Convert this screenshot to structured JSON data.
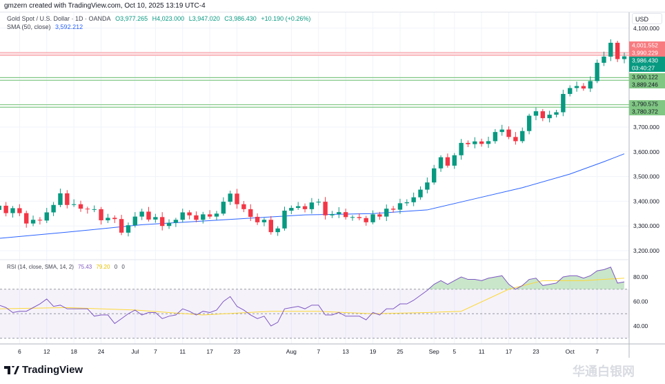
{
  "credit": "gmzern created with TradingView.com, Oct 10, 2025 13:19 UTC-4",
  "legend": {
    "symbol": "Gold Spot / U.S. Dollar · 1D · OANDA",
    "o": "O3,977.265",
    "h": "H4,023.000",
    "l": "L3,947.020",
    "c": "C3,986.430",
    "chg": "+10.190 (+0.26%)",
    "sma_label": "SMA (50, close)",
    "sma_value": "3,592.212",
    "rsi_label": "RSI (14, close, SMA, 14, 2)",
    "rsi_value": "75.43",
    "rsi_sma_value": "79.20",
    "rsi_extra1": "0",
    "rsi_extra2": "0"
  },
  "currency": "USD",
  "logo": "TradingView",
  "watermark": "华通白银网",
  "colors": {
    "up": "#089981",
    "down": "#f23645",
    "sma": "#2962ff",
    "rsi": "#7e57c2",
    "rsi_sma": "#fdd835",
    "hline_red": "#f7a1a7",
    "hline_green": "#81c784"
  },
  "chart_data": {
    "type": "candlestick",
    "title": "Gold Spot / U.S. Dollar · 1D · OANDA",
    "ylim": [
      3180,
      4100
    ],
    "y_ticks": [
      "4,100.000",
      "3,700.000",
      "3,600.000",
      "3,500.000",
      "3,400.000",
      "3,300.000",
      "3,200.000"
    ],
    "y_tick_values": [
      4100,
      3700,
      3600,
      3500,
      3400,
      3300,
      3200
    ],
    "x_labels": [
      [
        "6",
        3
      ],
      [
        "12",
        7
      ],
      [
        "18",
        11
      ],
      [
        "24",
        15
      ],
      [
        "Jul",
        20
      ],
      [
        "7",
        23
      ],
      [
        "11",
        27
      ],
      [
        "17",
        31
      ],
      [
        "23",
        35
      ],
      [
        "Aug",
        43
      ],
      [
        "7",
        47
      ],
      [
        "13",
        51
      ],
      [
        "19",
        55
      ],
      [
        "25",
        59
      ],
      [
        "Sep",
        64
      ],
      [
        "5",
        67
      ],
      [
        "11",
        71
      ],
      [
        "17",
        75
      ],
      [
        "23",
        79
      ],
      [
        "Oct",
        84
      ],
      [
        "7",
        88
      ]
    ],
    "open_first": 3365,
    "closes": [
      3382,
      3352,
      3372,
      3352,
      3310,
      3325,
      3322,
      3355,
      3385,
      3432,
      3385,
      3388,
      3370,
      3368,
      3368,
      3323,
      3333,
      3328,
      3273,
      3303,
      3338,
      3358,
      3326,
      3336,
      3300,
      3313,
      3325,
      3355,
      3343,
      3325,
      3347,
      3338,
      3350,
      3398,
      3431,
      3388,
      3368,
      3337,
      3315,
      3325,
      3275,
      3290,
      3362,
      3373,
      3380,
      3368,
      3395,
      3398,
      3343,
      3348,
      3356,
      3336,
      3336,
      3332,
      3315,
      3347,
      3338,
      3370,
      3366,
      3392,
      3396,
      3416,
      3447,
      3476,
      3533,
      3578,
      3544,
      3586,
      3636,
      3631,
      3642,
      3632,
      3643,
      3680,
      3690,
      3660,
      3643,
      3684,
      3746,
      3764,
      3736,
      3750,
      3760,
      3834,
      3858,
      3866,
      3856,
      3886,
      3960,
      3985,
      4041,
      3975,
      3986
    ],
    "sma": [
      [
        0,
        3250
      ],
      [
        10,
        3275
      ],
      [
        21,
        3305
      ],
      [
        33,
        3325
      ],
      [
        45,
        3345
      ],
      [
        55,
        3350
      ],
      [
        63,
        3365
      ],
      [
        70,
        3410
      ],
      [
        77,
        3455
      ],
      [
        84,
        3510
      ],
      [
        89,
        3560
      ],
      [
        92,
        3592
      ]
    ],
    "hlines": [
      {
        "label": "4,001.552",
        "value": 4001.552,
        "color": "red"
      },
      {
        "label": "3,990.229",
        "value": 3990.229,
        "color": "red"
      },
      {
        "label": "3,900.122",
        "value": 3900.122,
        "color": "green"
      },
      {
        "label": "3,889.246",
        "value": 3889.246,
        "color": "green"
      },
      {
        "label": "3,790.575",
        "value": 3790.575,
        "color": "green"
      },
      {
        "label": "3,780.372",
        "value": 3780.372,
        "color": "green"
      }
    ],
    "last_price": "3,986.430",
    "countdown": "03:40:27",
    "rsi": {
      "ylim": [
        25,
        92
      ],
      "ticks": [
        "80.00",
        "60.00",
        "40.00"
      ],
      "tick_values": [
        80,
        60,
        40
      ],
      "bands": [
        70,
        50,
        30
      ],
      "values": [
        57,
        55,
        51,
        52,
        52,
        55,
        58,
        62,
        56,
        57,
        54,
        54,
        54,
        54,
        48,
        49,
        49,
        42,
        46,
        50,
        53,
        49,
        51,
        51,
        46,
        48,
        49,
        54,
        52,
        49,
        52,
        51,
        53,
        60,
        64,
        56,
        53,
        49,
        46,
        48,
        40,
        43,
        54,
        55,
        56,
        54,
        57,
        57,
        49,
        49,
        51,
        48,
        48,
        48,
        45,
        51,
        49,
        54,
        54,
        58,
        58,
        61,
        65,
        69,
        74,
        77,
        74,
        77,
        80,
        78,
        78,
        77,
        79,
        80,
        81,
        74,
        70,
        73,
        78,
        79,
        73,
        74,
        75,
        80,
        81,
        81,
        79,
        81,
        85,
        86,
        88,
        75,
        76
      ],
      "sma": [
        [
          0,
          54
        ],
        [
          10,
          55
        ],
        [
          20,
          53
        ],
        [
          30,
          49
        ],
        [
          40,
          52
        ],
        [
          47,
          52
        ],
        [
          55,
          50
        ],
        [
          63,
          51
        ],
        [
          68,
          52
        ],
        [
          75,
          70
        ],
        [
          80,
          77
        ],
        [
          86,
          77
        ],
        [
          89,
          78
        ],
        [
          92,
          79
        ]
      ]
    }
  }
}
